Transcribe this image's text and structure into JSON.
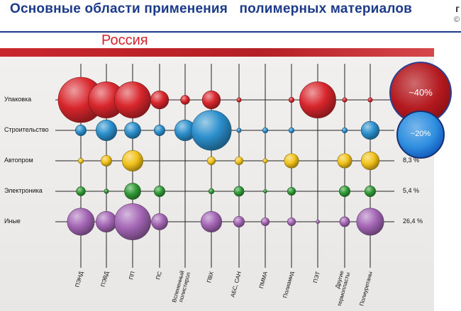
{
  "header": {
    "title": "Основные области применения   полимерных материалов",
    "corner_mark": "г",
    "corner_mark2": "©"
  },
  "region_title": "Россия",
  "colors": {
    "header_blue": "#1b3a8a",
    "title_red": "#d4232b",
    "packaging": "#d8262c",
    "construction": "#2b8fcc",
    "auto": "#f2c21a",
    "electronics": "#2f9a35",
    "other": "#a466b5"
  },
  "chart_data": {
    "type": "bubble",
    "categories": [
      "ПЭНД",
      "ПЭВД",
      "ПП",
      "ПС",
      "Вспененный полистирол",
      "ПВХ",
      "АБС, САН",
      "ПММА",
      "Полиамид",
      "ПЭТ",
      "Другие термопласты",
      "Полиуретаны"
    ],
    "rows": [
      {
        "name": "Упаковка",
        "share": "~40%",
        "color": "#d8262c",
        "sizes": [
          5,
          4,
          4,
          2,
          1,
          2,
          0.5,
          0,
          0.6,
          4,
          0.5,
          0.5
        ]
      },
      {
        "name": "Строительство",
        "share": "~20%",
        "color": "#2b8fcc",
        "sizes": [
          1.2,
          2.3,
          1.8,
          1.2,
          2.3,
          4.4,
          0.5,
          0.6,
          0.6,
          0,
          0.6,
          2
        ]
      },
      {
        "name": "Автопром",
        "share": "8,3 %",
        "color": "#f2c21a",
        "sizes": [
          0.6,
          1.2,
          2.3,
          0,
          0,
          0.9,
          0.9,
          0.5,
          1.6,
          0,
          1.6,
          2
        ]
      },
      {
        "name": "Электроника",
        "share": "5,4 %",
        "color": "#2f9a35",
        "sizes": [
          1,
          0.5,
          1.8,
          1.2,
          0,
          0.6,
          1.1,
          0.4,
          0.9,
          0,
          1.2,
          1.2
        ]
      },
      {
        "name": "Иные",
        "share": "26,4 %",
        "color": "#a466b5",
        "sizes": [
          3,
          2.3,
          4,
          1.8,
          0,
          2.3,
          1.2,
          0.9,
          0.9,
          0.4,
          1.1,
          3
        ]
      }
    ]
  }
}
